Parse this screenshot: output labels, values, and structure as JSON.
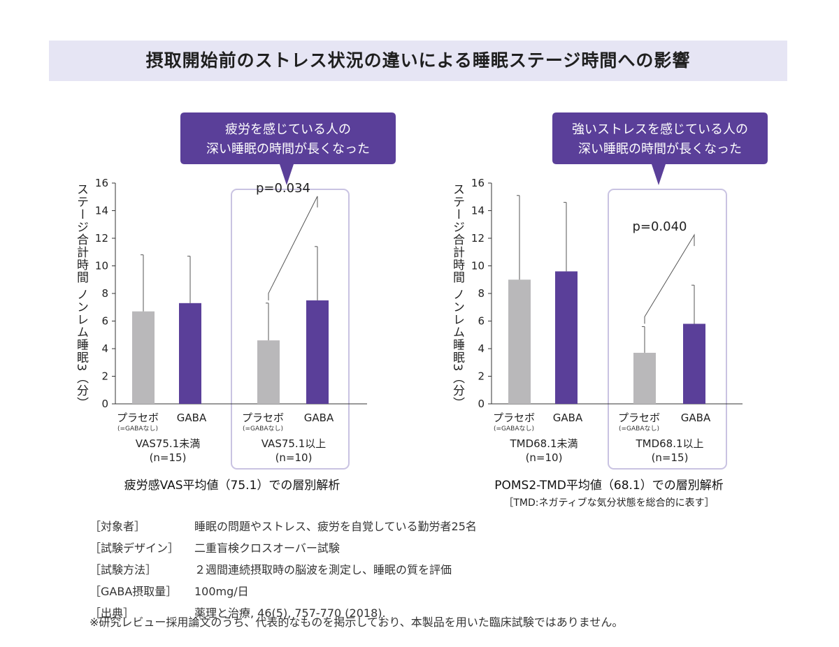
{
  "title": "摂取開始前のストレス状況の違いによる睡眠ステージ時間への影響",
  "colors": {
    "placebo": "#b9b8ba",
    "gaba": "#5a3f99",
    "callout": "#5a3f99",
    "highlight_border": "#c9c3e2",
    "title_bg": "#e6e5f4"
  },
  "chart_data": [
    {
      "type": "bar",
      "ylabel": "ステージ合計時間 ノンレム睡眠3（分）",
      "ylim": [
        0,
        16
      ],
      "yticks": [
        "0",
        "2",
        "4",
        "6",
        "8",
        "10",
        "12",
        "14",
        "16"
      ],
      "callout_lines": [
        "疲労を感じている人の",
        "深い睡眠の時間が長くなった"
      ],
      "groups": [
        {
          "name_lines": [
            "VAS75.1未満",
            "(n=15)"
          ],
          "highlight": false,
          "bars": [
            {
              "label": "プラセボ",
              "sublabel": "(=GABAなし)",
              "series": "placebo",
              "value": 6.7,
              "error_top": 10.8
            },
            {
              "label": "GABA",
              "sublabel": "",
              "series": "gaba",
              "value": 7.3,
              "error_top": 10.7
            }
          ]
        },
        {
          "name_lines": [
            "VAS75.1以上",
            "(n=10)"
          ],
          "highlight": true,
          "pvalue": "p=0.034",
          "bars": [
            {
              "label": "プラセボ",
              "sublabel": "(=GABAなし)",
              "series": "placebo",
              "value": 4.6,
              "error_top": 7.3
            },
            {
              "label": "GABA",
              "sublabel": "",
              "series": "gaba",
              "value": 7.5,
              "error_top": 11.4
            }
          ]
        }
      ],
      "analysis_title": "疲労感VAS平均値（75.1）での層別解析",
      "analysis_note": ""
    },
    {
      "type": "bar",
      "ylabel": "ステージ合計時間 ノンレム睡眠3（分）",
      "ylim": [
        0,
        16
      ],
      "yticks": [
        "0",
        "2",
        "4",
        "6",
        "8",
        "10",
        "12",
        "14",
        "16"
      ],
      "callout_lines": [
        "強いストレスを感じている人の",
        "深い睡眠の時間が長くなった"
      ],
      "groups": [
        {
          "name_lines": [
            "TMD68.1未満",
            "(n=10)"
          ],
          "highlight": false,
          "bars": [
            {
              "label": "プラセボ",
              "sublabel": "(=GABAなし)",
              "series": "placebo",
              "value": 9.0,
              "error_top": 15.1
            },
            {
              "label": "GABA",
              "sublabel": "",
              "series": "gaba",
              "value": 9.6,
              "error_top": 14.6
            }
          ]
        },
        {
          "name_lines": [
            "TMD68.1以上",
            "(n=15)"
          ],
          "highlight": true,
          "pvalue": "p=0.040",
          "bars": [
            {
              "label": "プラセボ",
              "sublabel": "(=GABAなし)",
              "series": "placebo",
              "value": 3.7,
              "error_top": 5.6
            },
            {
              "label": "GABA",
              "sublabel": "",
              "series": "gaba",
              "value": 5.8,
              "error_top": 8.6
            }
          ]
        }
      ],
      "analysis_title": "POMS2-TMD平均値（68.1）での層別解析",
      "analysis_note": "［TMD:ネガティブな気分状態を総合的に表す］"
    }
  ],
  "notes": [
    {
      "label": "［対象者］",
      "value": "睡眠の問題やストレス、疲労を自覚している勤労者25名"
    },
    {
      "label": "［試験デザイン］",
      "value": "二重盲検クロスオーバー試験"
    },
    {
      "label": "［試験方法］",
      "value": "２週間連続摂取時の脳波を測定し、睡眠の質を評価"
    },
    {
      "label": "［GABA摂取量］",
      "value": "100mg/日"
    },
    {
      "label": "［出典］",
      "value": "薬理と治療, 46(5), 757-770 (2018)."
    }
  ],
  "disclaimer": "※研究レビュー採用論文のうち、代表的なものを掲示しており、本製品を用いた臨床試験ではありません。"
}
